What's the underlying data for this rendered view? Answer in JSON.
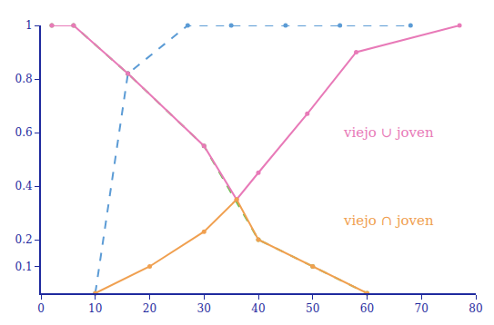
{
  "chart_data": {
    "type": "line",
    "series": [
      {
        "x": [
          10,
          16,
          27,
          35,
          45,
          55,
          68
        ],
        "values": [
          0,
          0.82,
          1,
          1,
          1,
          1,
          1
        ],
        "color": "#5b9bd5",
        "line_style": "dashed",
        "marker": "circle"
      },
      {
        "x": [
          2,
          6,
          16,
          30,
          40,
          50,
          60
        ],
        "values": [
          1,
          1,
          0.82,
          0.55,
          0.2,
          0.1,
          0
        ],
        "color": "#6cbf4f",
        "line_style": "dashed",
        "marker": "circle"
      },
      {
        "x": [
          2,
          6,
          16,
          30,
          36,
          40,
          49,
          58,
          77
        ],
        "values": [
          1,
          1,
          0.82,
          0.55,
          0.35,
          0.45,
          0.67,
          0.9,
          1
        ],
        "color": "#e87ab8",
        "line_style": "solid",
        "marker": "circle"
      },
      {
        "x": [
          10,
          20,
          30,
          36,
          40,
          50,
          60
        ],
        "values": [
          0,
          0.1,
          0.23,
          0.35,
          0.2,
          0.1,
          0
        ],
        "color": "#f0a050",
        "line_style": "solid",
        "marker": "circle"
      }
    ],
    "annotations": [
      {
        "text": "viejo ∪ joven",
        "x": 64,
        "y": 0.6,
        "color": "#e87ab8"
      },
      {
        "text": "viejo ∩ joven",
        "x": 64,
        "y": 0.27,
        "color": "#f0a050"
      }
    ],
    "xlim": [
      0,
      80
    ],
    "xticks": [
      0,
      10,
      20,
      30,
      40,
      50,
      60,
      70,
      80
    ],
    "ylim": [
      0,
      1
    ],
    "yticks": [
      0.1,
      0.2,
      0.4,
      0.6,
      0.8,
      1
    ],
    "grid": false
  }
}
